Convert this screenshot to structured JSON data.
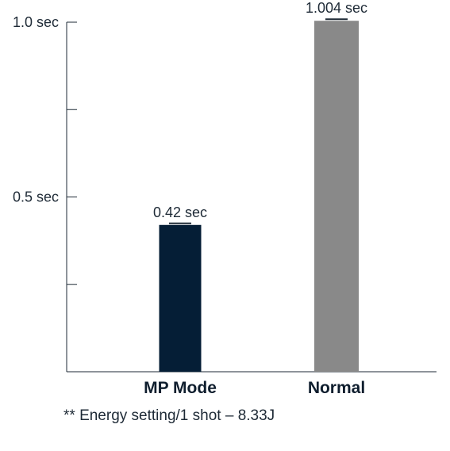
{
  "chart_data": {
    "type": "bar",
    "categories": [
      "MP Mode",
      "Normal"
    ],
    "values": [
      0.42,
      1.004
    ],
    "value_labels": [
      "0.42 sec",
      "1.004 sec"
    ],
    "colors": [
      "#051e36",
      "#898989"
    ],
    "ylim": [
      0,
      1.0
    ],
    "yticks": [
      0,
      0.25,
      0.5,
      0.75,
      1.0
    ],
    "ytick_labels": [
      "",
      "",
      "0.5 sec",
      "",
      "1.0 sec"
    ],
    "grid": false,
    "title": "",
    "xlabel": "",
    "ylabel": ""
  },
  "footnote": "** Energy setting/1 shot – 8.33J"
}
